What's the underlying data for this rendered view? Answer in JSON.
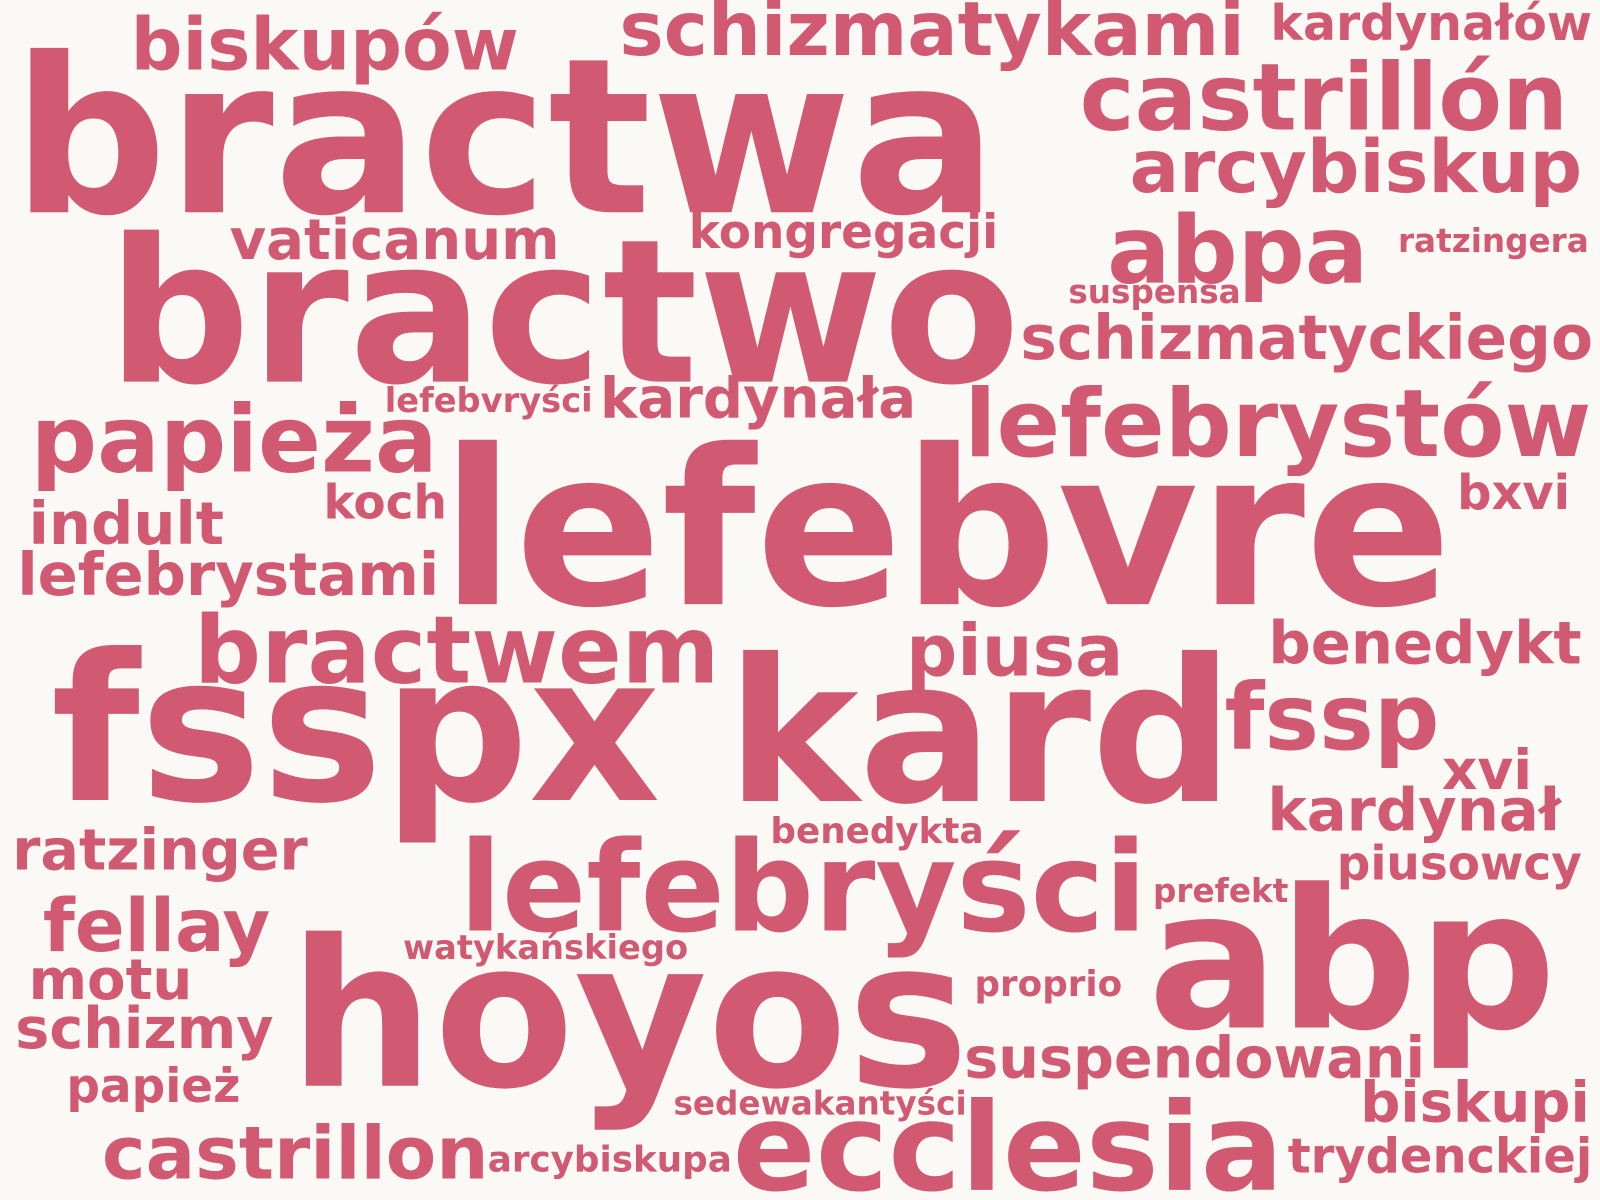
{
  "words": [
    "bractwa",
    "bractwo",
    "lefebvre",
    "fsspx",
    "kard",
    "hoyos",
    "lefebryści",
    "abp",
    "ecclesia",
    "lefebrystów",
    "castrillón",
    "abpa",
    "papieża",
    "bractwem",
    "fssp",
    "schizmatykami",
    "biskupów",
    "kardynałów",
    "arcybiskup",
    "vaticanum",
    "kongregacji",
    "ratzingera",
    "suspensa",
    "schizmatyckiego",
    "lefebvryści",
    "kardynała",
    "koch",
    "indult",
    "lefebrystami",
    "bxvi",
    "piusa",
    "benedykt",
    "xvi",
    "kardynał",
    "ratzinger",
    "benedykta",
    "piusowcy",
    "prefekt",
    "fellay",
    "watykańskiego",
    "motu",
    "proprio",
    "schizmy",
    "suspendowani",
    "papież",
    "sedewakantyści",
    "biskupi",
    "castrillon",
    "arcybiskupa",
    "trydenckiej"
  ],
  "colors": {
    "word": "#d15a72",
    "background": "#faf9f6"
  }
}
